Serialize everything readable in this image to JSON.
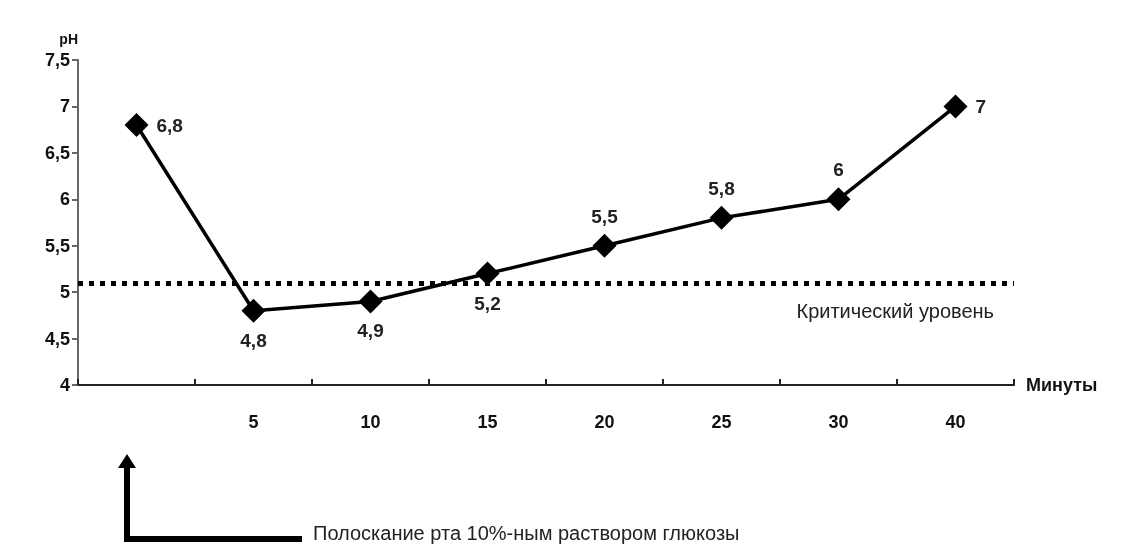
{
  "chart_data": {
    "type": "line",
    "ylabel": "pH",
    "xlabel": "Минуты",
    "categories": [
      null,
      "5",
      "10",
      "15",
      "20",
      "25",
      "30",
      "40"
    ],
    "series": [
      {
        "color": "#000000",
        "values": [
          6.8,
          4.8,
          4.9,
          5.2,
          5.5,
          5.8,
          6,
          7
        ],
        "value_labels": [
          "6,8",
          "4,8",
          "4,9",
          "5,2",
          "5,5",
          "5,8",
          "6",
          "7"
        ]
      }
    ],
    "ylim": [
      4,
      7.5
    ],
    "yticks": [
      4,
      {
        "value": 4.5,
        "label": "4,5"
      },
      5,
      {
        "value": 5.5,
        "label": "5,5"
      },
      6,
      {
        "value": 6.5,
        "label": "6,5"
      },
      7,
      {
        "value": 7.5,
        "label": "7,5"
      }
    ],
    "ref_lines": [
      {
        "axis": "y",
        "value": 5.1,
        "label": "Критический уровень",
        "color": "#000000",
        "line_style": "dotted"
      }
    ],
    "annotations": [
      "Полоскание рта 10%-ным раствором глюкозы"
    ],
    "marker": "diamond",
    "line_style": "solid",
    "grid": false
  }
}
